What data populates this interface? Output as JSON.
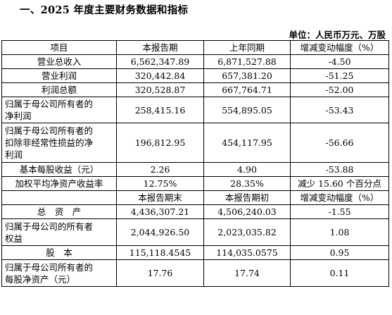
{
  "title": "一、2025 年度主要财务数据和指标",
  "unit": "单位：人民币万元、万股",
  "header1": [
    "项目",
    "本报告期",
    "上年同期",
    "增减变动幅度（%）"
  ],
  "rows1": [
    {
      "label": "营业总收入",
      "v1": "6,562,347.89",
      "v2": "6,871,527.88",
      "v3": "-4.50"
    },
    {
      "label": "营业利润",
      "v1": "320,442.84",
      "v2": "657,381.20",
      "v3": "-51.25"
    },
    {
      "label": "利润总额",
      "v1": "320,528.87",
      "v2": "667,764.71",
      "v3": "-52.00"
    },
    {
      "label": "归属于母公司所有者的\n净利润",
      "v1": "258,415.16",
      "v2": "554,895.05",
      "v3": "-53.43"
    },
    {
      "label": "归属于母公司所有者的\n扣除非经常性损益的净\n利润",
      "v1": "196,812.95",
      "v2": "454,117.95",
      "v3": "-56.66"
    },
    {
      "label": "基本每股收益（元）",
      "v1": "2.26",
      "v2": "4.90",
      "v3": "-53.88"
    },
    {
      "label": "加权平均净资产收益率",
      "v1": "12.75%",
      "v2": "28.35%",
      "v3": "减少 15.60 个百分点"
    }
  ],
  "header2": [
    "",
    "本报告期末",
    "本报告期初",
    "增减变动幅度（%）"
  ],
  "rows2": [
    {
      "label": "总　资　产",
      "v1": "4,436,307.21",
      "v2": "4,506,240.03",
      "v3": "-1.55"
    },
    {
      "label": "归属于母公司的所有者\n权益",
      "v1": "2,044,926.50",
      "v2": "2,023,035.82",
      "v3": "1.08"
    },
    {
      "label": "股　本",
      "v1": "115,118.4545",
      "v2": "114,035.0575",
      "v3": "0.95"
    },
    {
      "label": "归属于母公司所有者的\n每股净资产（元）",
      "v1": "17.76",
      "v2": "17.74",
      "v3": "0.11"
    }
  ]
}
